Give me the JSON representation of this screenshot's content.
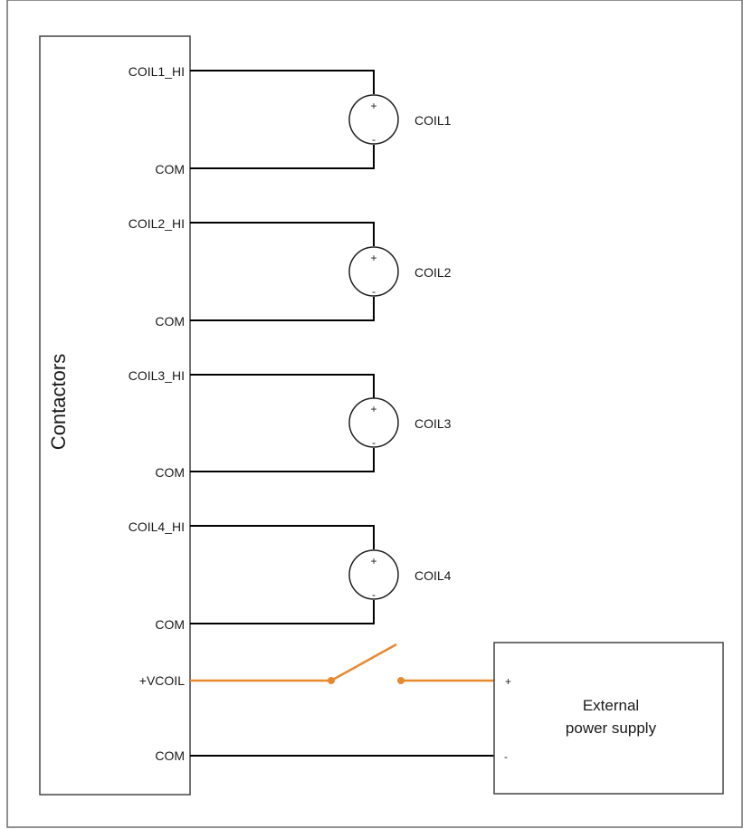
{
  "block_label": "Contactors",
  "coils": [
    {
      "hi_label": "COIL1_HI",
      "com_label": "COM",
      "coil_label": "COIL1"
    },
    {
      "hi_label": "COIL2_HI",
      "com_label": "COM",
      "coil_label": "COIL2"
    },
    {
      "hi_label": "COIL3_HI",
      "com_label": "COM",
      "coil_label": "COIL3"
    },
    {
      "hi_label": "COIL4_HI",
      "com_label": "COM",
      "coil_label": "COIL4"
    }
  ],
  "plus_sign": "+",
  "minus_sign": "-",
  "vcoil_label": "+VCOIL",
  "bottom_com_label": "COM",
  "power_supply": {
    "line1": "External",
    "line2": "power supply",
    "plus": "+",
    "minus": "-"
  },
  "colors": {
    "switch_wire": "#e8892e",
    "wire": "#000000"
  }
}
